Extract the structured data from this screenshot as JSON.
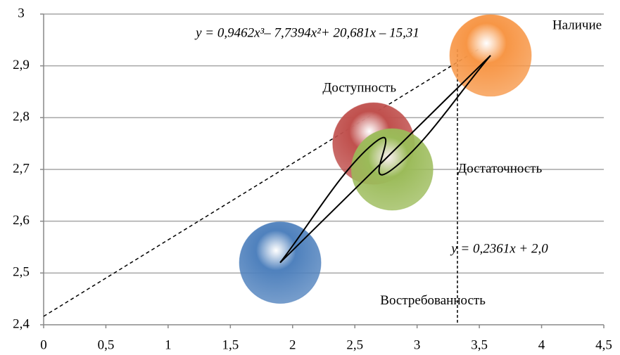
{
  "chart_data": {
    "type": "bubble",
    "x": [
      1.9,
      2.65,
      2.8,
      3.59
    ],
    "values": [
      2.52,
      2.75,
      2.7,
      2.92
    ],
    "labels": [
      "Востребованность",
      "Доступность",
      "Достаточность",
      "Наличие"
    ],
    "colors": [
      "#4f81bd",
      "#c0504d",
      "#9bbb59",
      "#f79646"
    ],
    "xlim": [
      0,
      4.5
    ],
    "xticks": [
      0,
      {
        "value": 0.5,
        "label": "0,5"
      },
      1,
      {
        "value": 1.5,
        "label": "1,5"
      },
      2,
      {
        "value": 2.5,
        "label": "2,5"
      },
      3,
      {
        "value": 3.5,
        "label": "3,5"
      },
      4,
      {
        "value": 4.5,
        "label": "4,5"
      }
    ],
    "ylim": [
      2.4,
      3
    ],
    "yticks": [
      {
        "value": 2.4,
        "label": "2,4"
      },
      {
        "value": 2.5,
        "label": "2,5"
      },
      {
        "value": 2.6,
        "label": "2,6"
      },
      {
        "value": 2.7,
        "label": "2,7"
      },
      {
        "value": 2.8,
        "label": "2,8"
      },
      {
        "value": 2.9,
        "label": "2,9"
      },
      3
    ],
    "grid": true,
    "annotations": [
      "y = 0,9462x³– 7,7394x²+ 20,681x – 15,31",
      "y = 0,2361x + 2,0"
    ]
  }
}
